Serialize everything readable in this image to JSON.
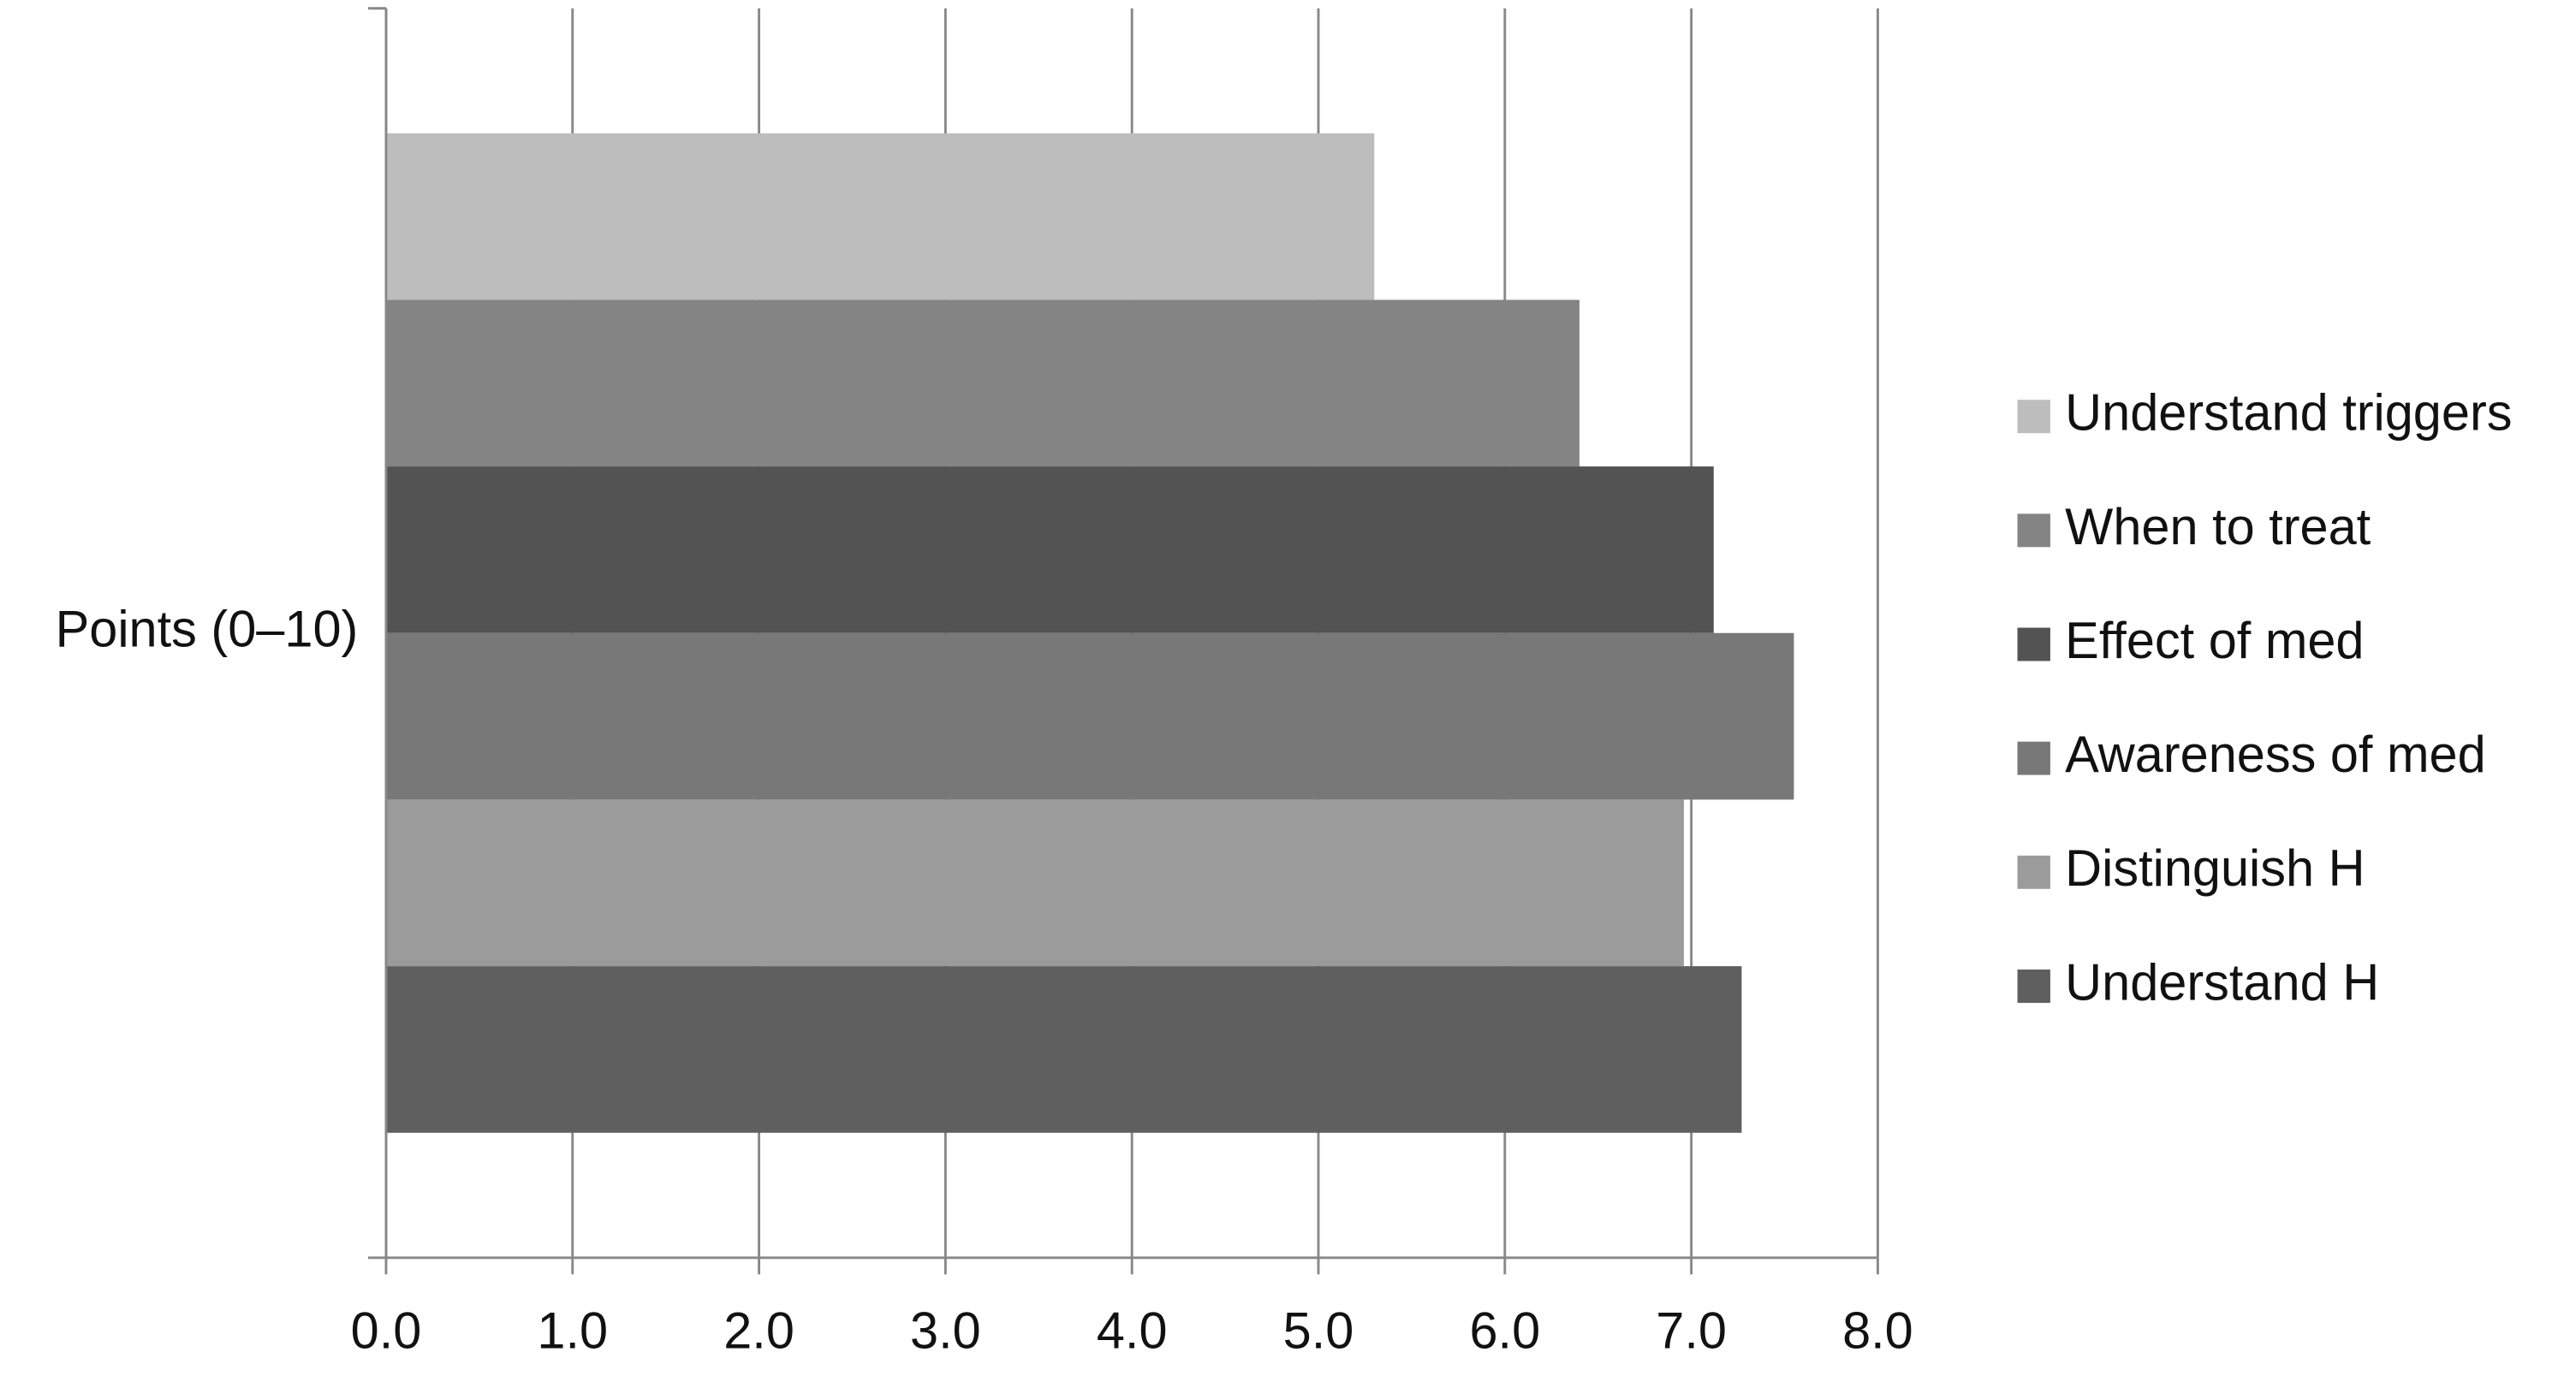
{
  "chart_data": {
    "type": "hbar",
    "categories": [
      "Points (0–10)"
    ],
    "series": [
      {
        "name": "Understand triggers",
        "color": "#bdbdbd",
        "values": [
          5.3
        ]
      },
      {
        "name": "When to treat",
        "color": "#848484",
        "values": [
          6.4
        ]
      },
      {
        "name": "Effect of med",
        "color": "#535353",
        "values": [
          7.12
        ]
      },
      {
        "name": "Awareness of med",
        "color": "#787878",
        "values": [
          7.55
        ]
      },
      {
        "name": "Distinguish H",
        "color": "#9b9b9b",
        "values": [
          6.96
        ]
      },
      {
        "name": "Understand H",
        "color": "#5f5f5f",
        "values": [
          7.27
        ]
      }
    ],
    "xlim": [
      0,
      8
    ],
    "xticks": [
      {
        "value": 0,
        "label": "0.0"
      },
      {
        "value": 1,
        "label": "1.0"
      },
      {
        "value": 2,
        "label": "2.0"
      },
      {
        "value": 3,
        "label": "3.0"
      },
      {
        "value": 4,
        "label": "4.0"
      },
      {
        "value": 5,
        "label": "5.0"
      },
      {
        "value": 6,
        "label": "6.0"
      },
      {
        "value": 7,
        "label": "7.0"
      },
      {
        "value": 8,
        "label": "8.0"
      }
    ],
    "grid": true,
    "legend": "right"
  }
}
